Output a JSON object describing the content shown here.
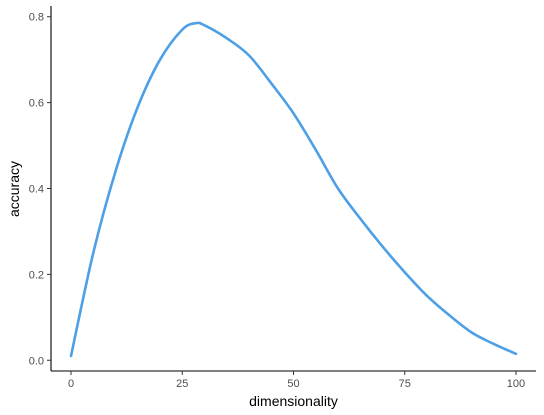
{
  "chart_data": {
    "type": "line",
    "title": "",
    "xlabel": "dimensionality",
    "ylabel": "accuracy",
    "xlim": [
      -4.5,
      104.5
    ],
    "ylim": [
      -0.025,
      0.825
    ],
    "x_ticks": [
      0,
      25,
      50,
      75,
      100
    ],
    "y_ticks": [
      0.0,
      0.2,
      0.4,
      0.6,
      0.8
    ],
    "x_tick_labels": [
      "0",
      "25",
      "50",
      "75",
      "100"
    ],
    "y_tick_labels": [
      "0.0",
      "0.2",
      "0.4",
      "0.6",
      "0.8"
    ],
    "grid": false,
    "legend": "none",
    "series": [
      {
        "color": "#4d9fe6",
        "x": [
          0,
          5,
          10,
          15,
          20,
          25,
          28,
          30,
          35,
          40,
          45,
          50,
          55,
          60,
          65,
          70,
          75,
          80,
          85,
          90,
          95,
          100
        ],
        "y": [
          0.01,
          0.25,
          0.44,
          0.59,
          0.7,
          0.77,
          0.785,
          0.78,
          0.75,
          0.71,
          0.645,
          0.575,
          0.49,
          0.4,
          0.33,
          0.265,
          0.205,
          0.15,
          0.105,
          0.065,
          0.038,
          0.015
        ]
      }
    ]
  }
}
